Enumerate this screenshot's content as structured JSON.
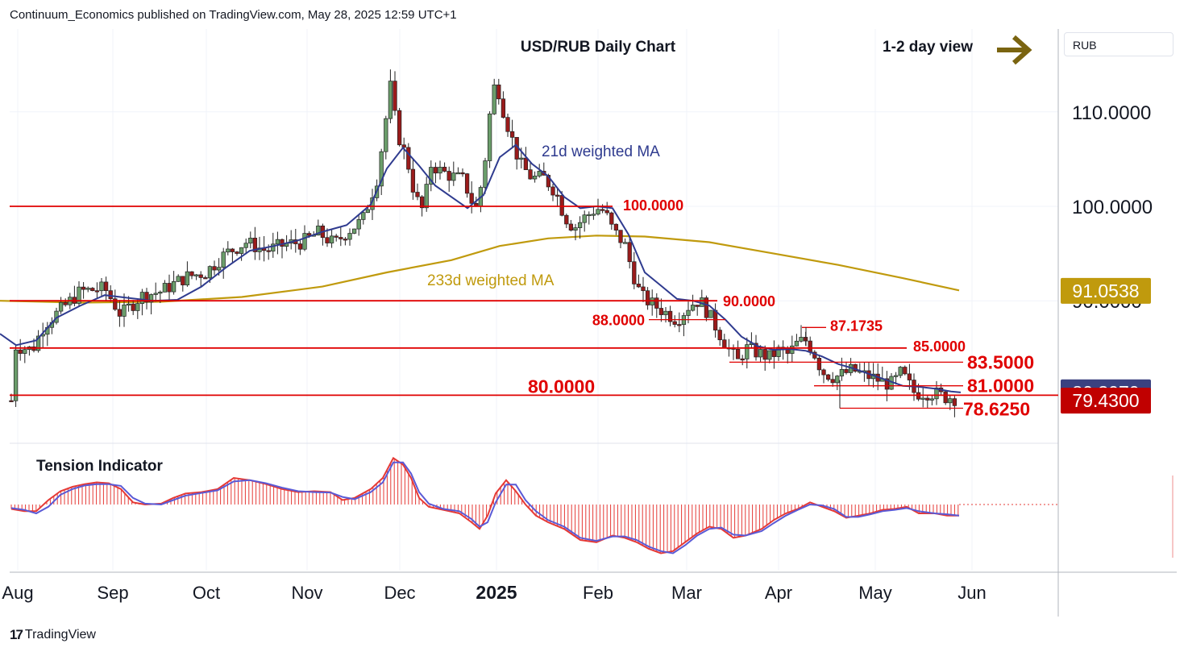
{
  "publisher_text": "Continuum_Economics published on TradingView.com, May 28, 2025 12:59 UTC+1",
  "brand": {
    "logo": "17",
    "name": "TradingView"
  },
  "currency": "RUB",
  "view_label": "1-2 day view",
  "view_icon": "arrow-right-icon",
  "colors": {
    "up_candle": "#6b9e6b",
    "down_candle": "#9a1b1b",
    "level_line": "#e00000",
    "ma21": "#2f3b8f",
    "ma233": "#c09a0d",
    "tension_fill": "#e53935",
    "tension_signal": "#5a5ad6",
    "arrow": "#7a6410"
  },
  "chart_data": {
    "type": "candlestick",
    "title": "USD/RUB Daily Chart",
    "x_ticks": [
      "Aug",
      "Sep",
      "Oct",
      "Nov",
      "Dec",
      "2025",
      "Feb",
      "Mar",
      "Apr",
      "May",
      "Jun"
    ],
    "y_ticks": [
      "110.0000",
      "100.0000",
      "90.0000"
    ],
    "ylim": [
      75.5,
      118.5
    ],
    "grid": true,
    "series": [
      {
        "name": "21d weighted MA",
        "points": [
          [
            0,
            86.5
          ],
          [
            20,
            85.3
          ],
          [
            45,
            85.8
          ],
          [
            70,
            88.2
          ],
          [
            100,
            89.5
          ],
          [
            130,
            90.6
          ],
          [
            160,
            90.3
          ],
          [
            190,
            90.0
          ],
          [
            220,
            90.1
          ],
          [
            250,
            91.5
          ],
          [
            280,
            93.5
          ],
          [
            310,
            95.3
          ],
          [
            340,
            95.8
          ],
          [
            370,
            96.4
          ],
          [
            400,
            97.3
          ],
          [
            430,
            98.0
          ],
          [
            460,
            100.2
          ],
          [
            480,
            104.0
          ],
          [
            500,
            106.2
          ],
          [
            520,
            104.3
          ],
          [
            540,
            102.2
          ],
          [
            560,
            101.0
          ],
          [
            580,
            99.8
          ],
          [
            600,
            101.2
          ],
          [
            620,
            105.2
          ],
          [
            640,
            106.5
          ],
          [
            660,
            104.5
          ],
          [
            680,
            103.2
          ],
          [
            700,
            101.0
          ],
          [
            720,
            99.8
          ],
          [
            740,
            100.0
          ],
          [
            760,
            99.8
          ],
          [
            780,
            97.0
          ],
          [
            800,
            93.0
          ],
          [
            820,
            91.6
          ],
          [
            840,
            90.2
          ],
          [
            860,
            90.0
          ],
          [
            880,
            89.5
          ],
          [
            900,
            88.0
          ],
          [
            920,
            86.2
          ],
          [
            940,
            85.2
          ],
          [
            960,
            84.8
          ],
          [
            980,
            84.9
          ],
          [
            1000,
            84.7
          ],
          [
            1020,
            84.1
          ],
          [
            1040,
            83.3
          ],
          [
            1060,
            82.8
          ],
          [
            1080,
            82.2
          ],
          [
            1100,
            81.6
          ],
          [
            1120,
            81.0
          ],
          [
            1140,
            80.9
          ],
          [
            1160,
            80.7
          ],
          [
            1180,
            80.4
          ],
          [
            1192,
            80.3
          ]
        ]
      },
      {
        "name": "233d weighted MA",
        "points": [
          [
            0,
            90.0
          ],
          [
            100,
            89.8
          ],
          [
            200,
            89.9
          ],
          [
            300,
            90.4
          ],
          [
            400,
            91.5
          ],
          [
            480,
            93.0
          ],
          [
            560,
            94.3
          ],
          [
            620,
            95.8
          ],
          [
            680,
            96.6
          ],
          [
            740,
            96.9
          ],
          [
            800,
            96.8
          ],
          [
            880,
            96.2
          ],
          [
            960,
            95.0
          ],
          [
            1040,
            93.8
          ],
          [
            1120,
            92.4
          ],
          [
            1190,
            91.1
          ]
        ]
      }
    ],
    "levels": [
      {
        "label": "100.0000",
        "value": 100.0
      },
      {
        "label": "90.0000",
        "value": 90.0
      },
      {
        "label": "88.0000",
        "value": 88.0
      },
      {
        "label": "87.1735",
        "value": 87.1735
      },
      {
        "label": "85.0000",
        "value": 85.0
      },
      {
        "label": "83.5000",
        "value": 83.5
      },
      {
        "label": "81.0000",
        "value": 81.0
      },
      {
        "label": "80.0000",
        "value": 80.0
      },
      {
        "label": "78.6250",
        "value": 78.625
      }
    ],
    "price_tags": [
      {
        "label": "91.0538",
        "value": 91.0538
      },
      {
        "label": "80.3070",
        "value": 80.307
      },
      {
        "label": "79.4300",
        "value": 79.43
      }
    ],
    "ma_labels": [
      "21d weighted MA",
      "233d weighted MA"
    ],
    "close_path": [
      [
        15,
        85.3
      ],
      [
        40,
        84.8
      ],
      [
        55,
        87.5
      ],
      [
        75,
        89.0
      ],
      [
        100,
        91.0
      ],
      [
        130,
        91.3
      ],
      [
        150,
        88.5
      ],
      [
        175,
        90.5
      ],
      [
        200,
        91.0
      ],
      [
        230,
        92.5
      ],
      [
        255,
        93.0
      ],
      [
        280,
        95.0
      ],
      [
        305,
        96.2
      ],
      [
        330,
        95.3
      ],
      [
        355,
        96.0
      ],
      [
        375,
        96.2
      ],
      [
        395,
        97.2
      ],
      [
        415,
        96.0
      ],
      [
        430,
        97.3
      ],
      [
        450,
        98.5
      ],
      [
        468,
        103.0
      ],
      [
        480,
        110.0
      ],
      [
        485,
        113.0
      ],
      [
        492,
        108.0
      ],
      [
        505,
        105.0
      ],
      [
        515,
        101.0
      ],
      [
        525,
        99.5
      ],
      [
        535,
        104.5
      ],
      [
        545,
        103.8
      ],
      [
        560,
        103.2
      ],
      [
        575,
        102.8
      ],
      [
        590,
        99.5
      ],
      [
        600,
        103.5
      ],
      [
        608,
        110.0
      ],
      [
        615,
        113.5
      ],
      [
        625,
        110.0
      ],
      [
        632,
        108.0
      ],
      [
        645,
        104.5
      ],
      [
        660,
        103.0
      ],
      [
        675,
        103.0
      ],
      [
        690,
        101.5
      ],
      [
        700,
        99.0
      ],
      [
        712,
        97.7
      ],
      [
        725,
        98.8
      ],
      [
        740,
        99.8
      ],
      [
        750,
        99.5
      ],
      [
        760,
        97.5
      ],
      [
        775,
        96.0
      ],
      [
        785,
        93.0
      ],
      [
        795,
        90.5
      ],
      [
        810,
        89.6
      ],
      [
        825,
        88.8
      ],
      [
        840,
        88.0
      ],
      [
        855,
        89.5
      ],
      [
        868,
        90.1
      ],
      [
        880,
        88.5
      ],
      [
        893,
        86.5
      ],
      [
        905,
        84.8
      ],
      [
        915,
        83.5
      ],
      [
        925,
        85.0
      ],
      [
        940,
        84.5
      ],
      [
        955,
        84.0
      ],
      [
        965,
        84.7
      ],
      [
        978,
        84.3
      ],
      [
        990,
        85.6
      ],
      [
        1000,
        85.8
      ],
      [
        1010,
        84.5
      ],
      [
        1020,
        82.5
      ],
      [
        1035,
        81.9
      ],
      [
        1048,
        82.3
      ],
      [
        1058,
        82.7
      ],
      [
        1070,
        82.2
      ],
      [
        1085,
        81.8
      ],
      [
        1098,
        81.3
      ],
      [
        1108,
        81.2
      ],
      [
        1118,
        82.4
      ],
      [
        1125,
        81.5
      ],
      [
        1135,
        80.2
      ],
      [
        1148,
        80.3
      ],
      [
        1160,
        80.2
      ],
      [
        1172,
        79.8
      ],
      [
        1182,
        79.8
      ],
      [
        1190,
        79.43
      ]
    ],
    "tension_indicator": {
      "title": "Tension Indicator",
      "ylim": [
        -1.3,
        1.2
      ],
      "histogram": [
        [
          14,
          -0.1
        ],
        [
          30,
          -0.15
        ],
        [
          45,
          -0.15
        ],
        [
          60,
          0.1
        ],
        [
          75,
          0.3
        ],
        [
          90,
          0.4
        ],
        [
          105,
          0.46
        ],
        [
          120,
          0.5
        ],
        [
          135,
          0.48
        ],
        [
          150,
          0.35
        ],
        [
          165,
          0.05
        ],
        [
          180,
          0.0
        ],
        [
          200,
          0.02
        ],
        [
          215,
          0.15
        ],
        [
          230,
          0.25
        ],
        [
          250,
          0.28
        ],
        [
          270,
          0.35
        ],
        [
          290,
          0.6
        ],
        [
          310,
          0.55
        ],
        [
          330,
          0.46
        ],
        [
          350,
          0.35
        ],
        [
          370,
          0.28
        ],
        [
          390,
          0.3
        ],
        [
          410,
          0.28
        ],
        [
          425,
          0.1
        ],
        [
          440,
          0.15
        ],
        [
          460,
          0.35
        ],
        [
          475,
          0.6
        ],
        [
          488,
          1.05
        ],
        [
          500,
          0.9
        ],
        [
          510,
          0.6
        ],
        [
          520,
          0.15
        ],
        [
          532,
          -0.05
        ],
        [
          550,
          -0.12
        ],
        [
          570,
          -0.2
        ],
        [
          585,
          -0.4
        ],
        [
          595,
          -0.55
        ],
        [
          605,
          -0.25
        ],
        [
          615,
          0.25
        ],
        [
          628,
          0.55
        ],
        [
          640,
          0.3
        ],
        [
          652,
          0.0
        ],
        [
          665,
          -0.25
        ],
        [
          680,
          -0.4
        ],
        [
          700,
          -0.55
        ],
        [
          720,
          -0.8
        ],
        [
          740,
          -0.85
        ],
        [
          760,
          -0.7
        ],
        [
          775,
          -0.75
        ],
        [
          790,
          -0.85
        ],
        [
          805,
          -1.0
        ],
        [
          820,
          -1.1
        ],
        [
          835,
          -1.05
        ],
        [
          850,
          -0.85
        ],
        [
          865,
          -0.65
        ],
        [
          880,
          -0.5
        ],
        [
          895,
          -0.55
        ],
        [
          910,
          -0.75
        ],
        [
          925,
          -0.7
        ],
        [
          945,
          -0.55
        ],
        [
          960,
          -0.35
        ],
        [
          975,
          -0.2
        ],
        [
          990,
          -0.1
        ],
        [
          1005,
          0.05
        ],
        [
          1020,
          -0.05
        ],
        [
          1035,
          -0.15
        ],
        [
          1050,
          -0.3
        ],
        [
          1065,
          -0.25
        ],
        [
          1080,
          -0.2
        ],
        [
          1095,
          -0.12
        ],
        [
          1110,
          -0.1
        ],
        [
          1125,
          -0.05
        ],
        [
          1140,
          -0.2
        ],
        [
          1160,
          -0.2
        ],
        [
          1175,
          -0.25
        ],
        [
          1190,
          -0.25
        ]
      ],
      "signal": [
        [
          14,
          -0.08
        ],
        [
          30,
          -0.12
        ],
        [
          45,
          -0.2
        ],
        [
          60,
          -0.05
        ],
        [
          75,
          0.22
        ],
        [
          90,
          0.35
        ],
        [
          105,
          0.43
        ],
        [
          120,
          0.46
        ],
        [
          135,
          0.46
        ],
        [
          150,
          0.42
        ],
        [
          165,
          0.15
        ],
        [
          180,
          0.02
        ],
        [
          200,
          0.0
        ],
        [
          215,
          0.1
        ],
        [
          230,
          0.2
        ],
        [
          250,
          0.26
        ],
        [
          270,
          0.32
        ],
        [
          290,
          0.52
        ],
        [
          310,
          0.55
        ],
        [
          330,
          0.48
        ],
        [
          350,
          0.38
        ],
        [
          370,
          0.3
        ],
        [
          390,
          0.28
        ],
        [
          410,
          0.27
        ],
        [
          425,
          0.17
        ],
        [
          440,
          0.12
        ],
        [
          460,
          0.28
        ],
        [
          475,
          0.5
        ],
        [
          488,
          0.95
        ],
        [
          500,
          0.95
        ],
        [
          510,
          0.7
        ],
        [
          520,
          0.28
        ],
        [
          532,
          0.02
        ],
        [
          550,
          -0.1
        ],
        [
          570,
          -0.15
        ],
        [
          585,
          -0.33
        ],
        [
          595,
          -0.5
        ],
        [
          605,
          -0.4
        ],
        [
          615,
          0.05
        ],
        [
          628,
          0.45
        ],
        [
          640,
          0.45
        ],
        [
          652,
          0.1
        ],
        [
          665,
          -0.15
        ],
        [
          680,
          -0.35
        ],
        [
          700,
          -0.5
        ],
        [
          720,
          -0.75
        ],
        [
          740,
          -0.82
        ],
        [
          760,
          -0.72
        ],
        [
          775,
          -0.72
        ],
        [
          790,
          -0.8
        ],
        [
          805,
          -0.95
        ],
        [
          820,
          -1.05
        ],
        [
          835,
          -1.1
        ],
        [
          850,
          -0.92
        ],
        [
          865,
          -0.7
        ],
        [
          880,
          -0.55
        ],
        [
          895,
          -0.52
        ],
        [
          910,
          -0.68
        ],
        [
          925,
          -0.7
        ],
        [
          945,
          -0.6
        ],
        [
          960,
          -0.42
        ],
        [
          975,
          -0.25
        ],
        [
          990,
          -0.12
        ],
        [
          1005,
          0.0
        ],
        [
          1020,
          -0.02
        ],
        [
          1035,
          -0.1
        ],
        [
          1050,
          -0.28
        ],
        [
          1065,
          -0.28
        ],
        [
          1080,
          -0.22
        ],
        [
          1095,
          -0.15
        ],
        [
          1110,
          -0.12
        ],
        [
          1125,
          -0.08
        ],
        [
          1140,
          -0.15
        ],
        [
          1160,
          -0.2
        ],
        [
          1175,
          -0.22
        ],
        [
          1190,
          -0.25
        ]
      ]
    }
  }
}
